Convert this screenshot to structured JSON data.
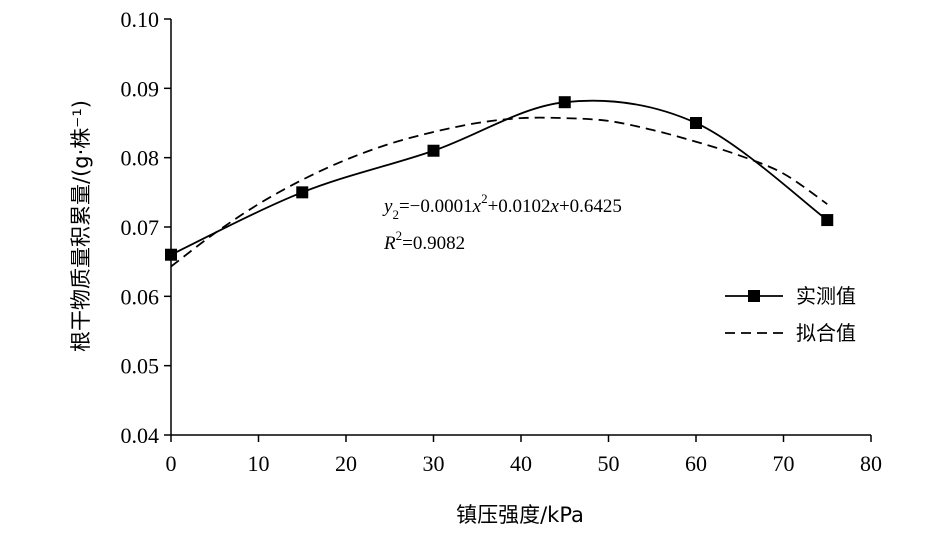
{
  "chart_data": {
    "type": "line",
    "xlabel": "镇压强度/kPa",
    "ylabel": "根干物质量积累量/(g·株⁻¹)",
    "xlim": [
      0,
      80
    ],
    "ylim": [
      0.04,
      0.1
    ],
    "xticks": [
      "0",
      "10",
      "20",
      "30",
      "40",
      "50",
      "60",
      "70",
      "80"
    ],
    "yticks": [
      "0.04",
      "0.05",
      "0.06",
      "0.07",
      "0.08",
      "0.09",
      "0.10"
    ],
    "grid": false,
    "legend_position": "right",
    "series": [
      {
        "name": "实测值",
        "style": "solid",
        "marker": "square",
        "x": [
          0,
          15,
          30,
          45,
          60,
          75
        ],
        "y": [
          0.066,
          0.075,
          0.081,
          0.088,
          0.085,
          0.071
        ]
      },
      {
        "name": "拟合值",
        "style": "dashed",
        "x": [
          0,
          5,
          10,
          15,
          20,
          25,
          30,
          35,
          40,
          45,
          50,
          55,
          60,
          65,
          70,
          75
        ],
        "y": [
          0.0643,
          0.0691,
          0.0733,
          0.0768,
          0.0797,
          0.082,
          0.0837,
          0.085,
          0.0857,
          0.0857,
          0.0853,
          0.084,
          0.0823,
          0.0803,
          0.0777,
          0.0733
        ]
      }
    ],
    "annotation": {
      "equation": {
        "var": "y",
        "var_sub": "2",
        "part1": "=−0.0001",
        "x1": "x",
        "exp": "2",
        "part2": "+0.0102",
        "x2": "x",
        "part3": "+0.6425"
      },
      "r2": {
        "var": "R",
        "exp": "2",
        "value": "=0.9082"
      }
    }
  }
}
